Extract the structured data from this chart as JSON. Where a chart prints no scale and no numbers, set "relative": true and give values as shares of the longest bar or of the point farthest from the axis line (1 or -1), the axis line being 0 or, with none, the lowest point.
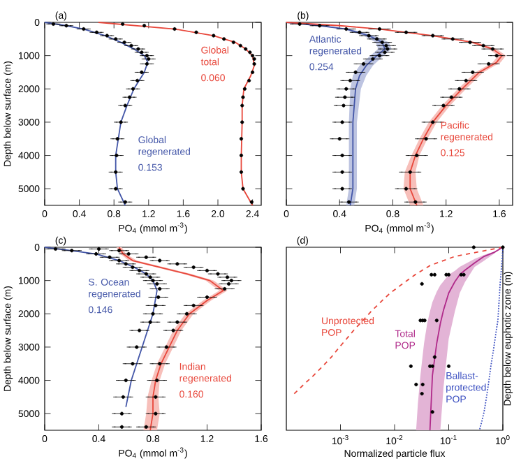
{
  "chart_data": [
    {
      "type": "line",
      "title": "(a)",
      "orientation": "horizontal",
      "xlabel": "PO$_{4}$ (mmol m$^{-3}$)",
      "ylabel": "Depth below surface (m)",
      "xlim": [
        0,
        2.5
      ],
      "xticks": [
        0,
        0.4,
        0.8,
        1.2,
        1.6,
        {
          "value": 2.0,
          "label": "2.0"
        },
        2.4
      ],
      "ylim": [
        5500,
        0
      ],
      "yticks": [
        0,
        1000,
        2000,
        3000,
        4000,
        5000
      ],
      "annotations": [
        "0.153",
        "0.060"
      ],
      "series": [
        {
          "name": "Global regenerated",
          "color": "#4356a8",
          "x": [
            0,
            100,
            200,
            400,
            600,
            800,
            1000,
            1200,
            1500,
            2000,
            2500,
            3000,
            3500,
            4000,
            4500,
            5000,
            5500
          ],
          "values": [
            0,
            0.25,
            0.45,
            0.7,
            0.88,
            1.03,
            1.15,
            1.19,
            1.15,
            1.03,
            0.95,
            0.88,
            0.85,
            0.82,
            0.82,
            0.84,
            0.93
          ]
        },
        {
          "name": "Global total",
          "color": "#e8473b",
          "x": [
            0,
            200,
            400,
            600,
            800,
            1000,
            1300,
            1600,
            2000,
            2500,
            3000,
            4000,
            4500,
            5000,
            5500
          ],
          "values": [
            0.62,
            1.5,
            1.95,
            2.2,
            2.32,
            2.4,
            2.42,
            2.38,
            2.3,
            2.28,
            2.28,
            2.27,
            2.27,
            2.29,
            2.4
          ]
        },
        {
          "type": "scatter",
          "color": "#000000",
          "x": [
            50,
            100,
            200,
            300,
            400,
            500,
            600,
            700,
            800,
            900,
            1000,
            1100,
            1250,
            1500,
            1750,
            2000,
            2250,
            2500,
            3000,
            3500,
            4000,
            4500,
            5000,
            5400
          ],
          "values": [
            0.1,
            0.25,
            0.45,
            0.6,
            0.72,
            0.82,
            0.92,
            1.0,
            1.08,
            1.12,
            1.18,
            1.2,
            1.18,
            1.12,
            1.07,
            1.02,
            0.98,
            0.93,
            0.88,
            0.84,
            0.83,
            0.82,
            0.82,
            0.93
          ],
          "errors": [
            0.06,
            0.06,
            0.06,
            0.06,
            0.06,
            0.06,
            0.06,
            0.06,
            0.06,
            0.06,
            0.06,
            0.06,
            0.06,
            0.06,
            0.06,
            0.06,
            0.06,
            0.06,
            0.06,
            0.06,
            0.06,
            0.06,
            0.06,
            0.06
          ]
        },
        {
          "type": "scatter",
          "color": "#000000",
          "x": [
            50,
            100,
            200,
            300,
            400,
            500,
            600,
            700,
            800,
            900,
            1000,
            1100,
            1250,
            1500,
            1750,
            2000,
            2250,
            2500,
            3000,
            3500,
            4000,
            4500,
            5000,
            5400
          ],
          "values": [
            0.9,
            1.15,
            1.5,
            1.75,
            1.95,
            2.07,
            2.18,
            2.26,
            2.32,
            2.37,
            2.4,
            2.42,
            2.42,
            2.4,
            2.36,
            2.31,
            2.29,
            2.28,
            2.28,
            2.27,
            2.27,
            2.27,
            2.29,
            2.39
          ]
        }
      ]
    },
    {
      "type": "line",
      "title": "(b)",
      "orientation": "horizontal",
      "xlabel": "PO$_{4}$ (mmol m$^{-3}$)",
      "tick_labels": "x",
      "xlim": [
        0,
        1.7
      ],
      "xticks": [
        0,
        0.4,
        0.8,
        1.2,
        1.6
      ],
      "ylim": [
        5500,
        0
      ],
      "yticks": [
        0,
        1000,
        2000,
        3000,
        4000,
        5000
      ],
      "annotations": [
        "0.254",
        "0.125"
      ],
      "series": [
        {
          "name": "Atlantic regenerated",
          "color": "#4356a8",
          "x": [
            0,
            100,
            200,
            400,
            600,
            800,
            1000,
            1300,
            1600,
            2000,
            3000,
            4000,
            5000,
            5500
          ],
          "values": [
            0,
            0.25,
            0.45,
            0.62,
            0.72,
            0.74,
            0.68,
            0.6,
            0.55,
            0.52,
            0.5,
            0.5,
            0.5,
            0.48
          ],
          "lower": [
            0,
            0.23,
            0.42,
            0.58,
            0.67,
            0.69,
            0.63,
            0.55,
            0.5,
            0.48,
            0.47,
            0.47,
            0.47,
            0.45
          ],
          "upper": [
            0,
            0.27,
            0.48,
            0.66,
            0.77,
            0.79,
            0.73,
            0.65,
            0.6,
            0.56,
            0.53,
            0.53,
            0.53,
            0.51
          ]
        },
        {
          "name": "Pacific regenerated",
          "color": "#e8473b",
          "x": [
            0,
            100,
            200,
            400,
            600,
            800,
            1000,
            1200,
            1500,
            2000,
            2500,
            3000,
            3500,
            4000,
            4500,
            5000,
            5500
          ],
          "values": [
            0,
            0.4,
            0.7,
            1.1,
            1.4,
            1.55,
            1.62,
            1.58,
            1.45,
            1.32,
            1.2,
            1.1,
            1.03,
            0.97,
            0.93,
            0.93,
            0.98
          ],
          "lower": [
            0,
            0.38,
            0.68,
            1.07,
            1.37,
            1.52,
            1.59,
            1.55,
            1.42,
            1.29,
            1.17,
            1.07,
            1.0,
            0.94,
            0.89,
            0.88,
            0.93
          ],
          "upper": [
            0,
            0.42,
            0.72,
            1.13,
            1.43,
            1.58,
            1.65,
            1.61,
            1.48,
            1.35,
            1.23,
            1.13,
            1.06,
            1.0,
            0.97,
            0.98,
            1.03
          ]
        },
        {
          "type": "scatter",
          "color": "#000000",
          "x": [
            50,
            100,
            200,
            300,
            400,
            500,
            600,
            700,
            800,
            900,
            1000,
            1100,
            1250,
            1500,
            1750,
            2000,
            2250,
            2500,
            3000,
            3500,
            4000,
            4500,
            5000,
            5400
          ],
          "values": [
            0.1,
            0.25,
            0.45,
            0.55,
            0.62,
            0.68,
            0.72,
            0.75,
            0.76,
            0.74,
            0.7,
            0.65,
            0.58,
            0.52,
            0.48,
            0.45,
            0.44,
            0.43,
            0.42,
            0.4,
            0.42,
            0.42,
            0.42,
            0.47
          ],
          "errors": [
            0.06,
            0.06,
            0.06,
            0.06,
            0.06,
            0.06,
            0.06,
            0.06,
            0.06,
            0.06,
            0.06,
            0.06,
            0.06,
            0.06,
            0.06,
            0.06,
            0.06,
            0.06,
            0.06,
            0.06,
            0.06,
            0.06,
            0.06,
            0.06
          ]
        },
        {
          "type": "scatter",
          "color": "#000000",
          "x": [
            200,
            300,
            400,
            500,
            600,
            700,
            800,
            1000,
            1250,
            1500,
            1750,
            2000,
            2250,
            2500,
            3000,
            3500,
            4000,
            4500,
            5000,
            5400
          ],
          "values": [
            0.7,
            0.9,
            1.1,
            1.25,
            1.38,
            1.48,
            1.55,
            1.58,
            1.52,
            1.4,
            1.35,
            1.3,
            1.24,
            1.18,
            1.1,
            1.05,
            0.98,
            0.93,
            0.9,
            0.97
          ],
          "errors": [
            0.07,
            0.07,
            0.07,
            0.07,
            0.07,
            0.07,
            0.07,
            0.05,
            0.07,
            0.07,
            0.07,
            0.07,
            0.07,
            0.07,
            0.07,
            0.07,
            0.07,
            0.07,
            0.07,
            0.07
          ]
        }
      ]
    },
    {
      "type": "line",
      "title": "(c)",
      "orientation": "horizontal",
      "xlabel": "PO$_{4}$ (mmol m$^{-3}$)",
      "ylabel": "Depth below surface (m)",
      "xlim": [
        0,
        1.6
      ],
      "xticks": [
        0,
        0.4,
        0.8,
        1.2,
        1.6
      ],
      "ylim": [
        5500,
        0
      ],
      "yticks": [
        0,
        1000,
        2000,
        3000,
        4000,
        5000
      ],
      "annotations": [
        "0.146",
        "0.160"
      ],
      "series": [
        {
          "name": "S. Ocean regenerated",
          "color": "#4356a8",
          "x": [
            0,
            100,
            200,
            400,
            600,
            800,
            1000,
            1300,
            2000,
            3000,
            4000,
            4800
          ],
          "values": [
            0,
            0.2,
            0.38,
            0.55,
            0.66,
            0.75,
            0.8,
            0.83,
            0.8,
            0.72,
            0.64,
            0.6
          ]
        },
        {
          "name": "Indian regenerated",
          "color": "#e8473b",
          "x": [
            0,
            200,
            400,
            600,
            800,
            1000,
            1300,
            1600,
            2000,
            2500,
            3000,
            3500,
            4000,
            4500,
            5000,
            5500
          ],
          "values": [
            0.55,
            0.58,
            0.65,
            0.85,
            1.05,
            1.22,
            1.32,
            1.2,
            1.07,
            0.98,
            0.92,
            0.86,
            0.82,
            0.8,
            0.8,
            0.78
          ],
          "lower": [
            0.53,
            0.56,
            0.62,
            0.82,
            1.02,
            1.19,
            1.29,
            1.17,
            1.04,
            0.95,
            0.89,
            0.83,
            0.79,
            0.76,
            0.75,
            0.73
          ],
          "upper": [
            0.57,
            0.6,
            0.68,
            0.88,
            1.08,
            1.25,
            1.35,
            1.23,
            1.1,
            1.01,
            0.95,
            0.89,
            0.85,
            0.84,
            0.85,
            0.83
          ]
        },
        {
          "type": "scatter",
          "color": "#000000",
          "x": [
            50,
            100,
            200,
            300,
            400,
            500,
            600,
            700,
            800,
            900,
            1000,
            1100,
            1250,
            1500,
            1750,
            2000,
            2250,
            2500,
            3000,
            3500,
            4000,
            4500,
            5000,
            5400
          ],
          "values": [
            0.08,
            0.2,
            0.38,
            0.48,
            0.55,
            0.6,
            0.65,
            0.7,
            0.75,
            0.78,
            0.8,
            0.83,
            0.85,
            0.84,
            0.82,
            0.8,
            0.78,
            0.7,
            0.68,
            0.65,
            0.6,
            0.58,
            0.57,
            0.57
          ],
          "errors": [
            0.06,
            0.06,
            0.06,
            0.06,
            0.06,
            0.06,
            0.06,
            0.06,
            0.06,
            0.06,
            0.06,
            0.06,
            0.06,
            0.06,
            0.06,
            0.06,
            0.06,
            0.06,
            0.06,
            0.06,
            0.06,
            0.06,
            0.06,
            0.06
          ]
        },
        {
          "type": "scatter",
          "color": "#000000",
          "x": [
            50,
            100,
            200,
            300,
            400,
            500,
            600,
            700,
            800,
            900,
            1000,
            1100,
            1250,
            1500,
            1750,
            2000,
            2250,
            2500,
            3000,
            3500,
            4000,
            4500,
            5000,
            5400
          ],
          "values": [
            0.4,
            0.55,
            0.62,
            0.75,
            0.85,
            0.98,
            1.1,
            1.2,
            1.28,
            1.35,
            1.38,
            1.36,
            1.33,
            1.2,
            1.1,
            1.05,
            0.98,
            0.95,
            0.9,
            0.85,
            0.83,
            0.82,
            0.82,
            0.75
          ],
          "errors": [
            0.06,
            0.06,
            0.06,
            0.06,
            0.06,
            0.06,
            0.06,
            0.06,
            0.06,
            0.06,
            0.06,
            0.06,
            0.06,
            0.06,
            0.06,
            0.06,
            0.06,
            0.06,
            0.06,
            0.06,
            0.06,
            0.06,
            0.06,
            0.06
          ]
        }
      ]
    },
    {
      "type": "line",
      "title": "(d)",
      "relative": true,
      "xlabel": "Normalized particle flux",
      "y2label": "Depth below euphotic zone (m)",
      "log": "x",
      "xlim": [
        0.0001,
        1
      ],
      "xticks": [
        {
          "value": 0.001,
          "label": "10$^{-3}$"
        },
        {
          "value": 0.01,
          "label": "10$^{-2}$"
        },
        {
          "value": 0.1,
          "label": "10$^{-1}$"
        },
        {
          "value": 1,
          "label": "10$^{0}$"
        }
      ],
      "series": [
        {
          "name": "Unprotected POP",
          "color": "#e8473b",
          "line_style": "dashed",
          "x": [
            1.0,
            0.13,
            0.045,
            0.024,
            0.014,
            0.0083,
            0.0055,
            0.0037,
            0.0026,
            0.0018,
            0.0013,
            0.00093,
            0.00068,
            0.00047,
            0.00032,
            0.00021,
            0.00014
          ],
          "values": [
            0,
            -0.05,
            -0.1,
            -0.15,
            -0.2,
            -0.25,
            -0.3,
            -0.35,
            -0.4,
            -0.45,
            -0.5,
            -0.55,
            -0.6,
            -0.65,
            -0.7,
            -0.75,
            -0.8
          ]
        },
        {
          "name": "Total POP",
          "color": "#b02a8a",
          "x": [
            0.025,
            0.027,
            0.03,
            0.035,
            0.04,
            0.045,
            0.05,
            0.06,
            0.07,
            0.08,
            0.1,
            0.13,
            0.16,
            0.2,
            0.3,
            0.45,
            0.7,
            1.0
          ],
          "values": [
            null,
            null,
            null,
            null,
            null,
            -1,
            -0.7,
            -0.525,
            -0.417,
            -0.344,
            -0.25,
            -0.188,
            -0.15,
            -0.125,
            -0.086,
            -0.05,
            -0.027,
            0
          ],
          "lower": [
            -1,
            -1,
            -1,
            -1,
            -1,
            -1,
            -1,
            -1,
            -1,
            -0.767,
            -0.5,
            -0.35,
            -0.25,
            -0.19,
            -0.108,
            -0.073,
            -0.033,
            0
          ],
          "upper": [
            -1,
            -0.85,
            -0.7,
            -0.525,
            -0.417,
            -0.35,
            -0.3,
            -0.243,
            -0.207,
            -0.186,
            -0.15,
            -0.129,
            -0.107,
            -0.092,
            -0.064,
            -0.042,
            -0.023,
            0
          ]
        },
        {
          "name": "Ballast-protected POP",
          "color": "#3a4ec0",
          "line_style": "dotted",
          "x": [
            1.0,
            0.98,
            0.95,
            0.92,
            0.89,
            0.87,
            0.85,
            0.83,
            0.81,
            0.76,
            0.72,
            0.68,
            0.64,
            0.6,
            0.57,
            0.54,
            0.51,
            0.48,
            0.45,
            0.41,
            0.37
          ],
          "values": [
            0,
            -0.05,
            -0.1,
            -0.15,
            -0.2,
            -0.25,
            -0.3,
            -0.35,
            -0.4,
            -0.45,
            -0.5,
            -0.55,
            -0.6,
            -0.65,
            -0.7,
            -0.75,
            -0.8,
            -0.85,
            -0.9,
            -0.95,
            -1
          ]
        },
        {
          "type": "scatter",
          "color": "#000000",
          "x": [
            1.0,
            0.29,
            0.048,
            0.055,
            0.09,
            0.1,
            0.17,
            0.19,
            0.032,
            0.03,
            0.033,
            0.036,
            0.06,
            0.055,
            0.02,
            0.045,
            0.05,
            0.1,
            0.025,
            0.033,
            0.032,
            0.05
          ],
          "values": [
            0,
            0,
            -0.15,
            -0.15,
            -0.15,
            -0.15,
            -0.15,
            -0.15,
            -0.2,
            -0.4,
            -0.4,
            -0.4,
            -0.4,
            -0.6,
            -0.65,
            -0.65,
            -0.65,
            -0.65,
            -0.75,
            -0.75,
            -0.8,
            -0.9
          ]
        }
      ]
    }
  ]
}
